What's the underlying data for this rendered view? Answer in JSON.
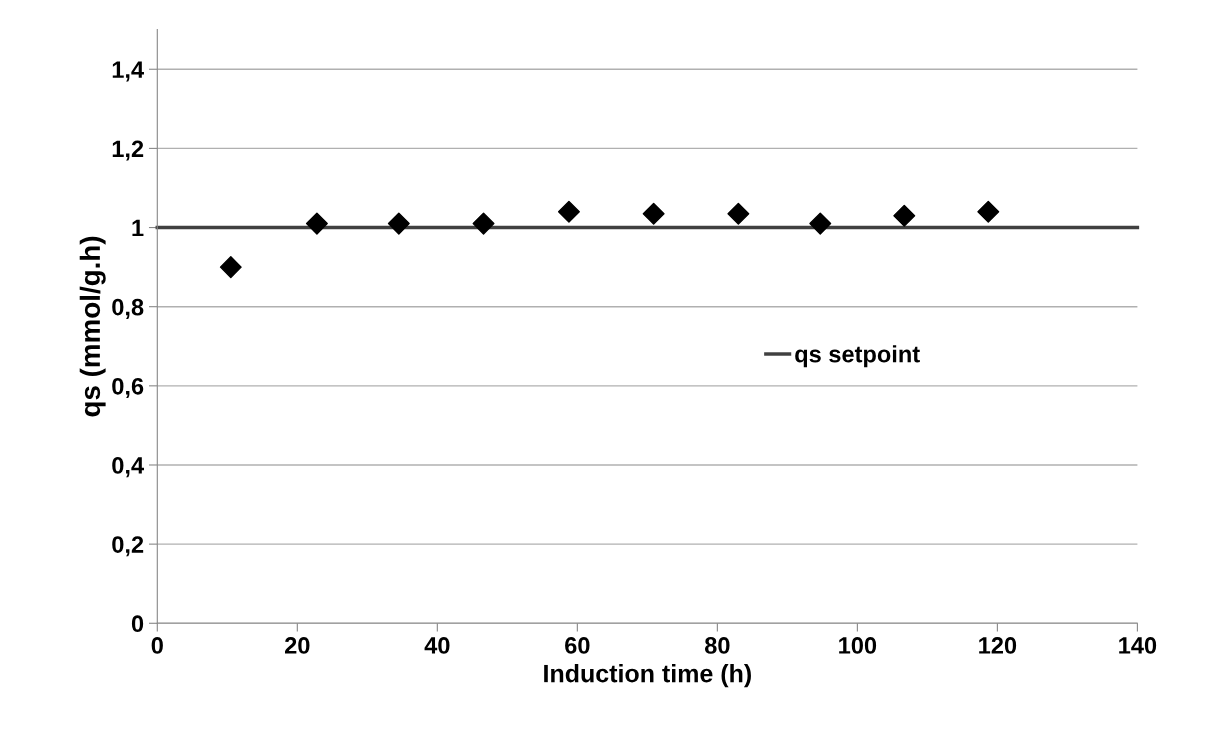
{
  "chart_data": {
    "type": "scatter",
    "xlabel": "Induction time (h)",
    "ylabel": "qs (mmol/g.h)",
    "series": [
      {
        "color": "#000000",
        "marker": "diamond",
        "x": [
          10.5,
          22.8,
          34.5,
          46.6,
          58.8,
          70.9,
          83.0,
          94.7,
          106.7,
          118.7
        ],
        "values": [
          0.9,
          1.01,
          1.01,
          1.01,
          1.04,
          1.035,
          1.035,
          1.01,
          1.03,
          1.04
        ]
      },
      {
        "type": "line",
        "name": "qs setpoint",
        "color": "#404040",
        "marker": "none",
        "x": [
          0,
          140
        ],
        "values": [
          1,
          1
        ]
      }
    ],
    "xlim": [
      0,
      140
    ],
    "xticks": [
      0,
      20,
      40,
      60,
      80,
      100,
      120,
      140
    ],
    "ylim": [
      0,
      1.5
    ],
    "yticks": [
      0,
      {
        "value": 0.2,
        "label": "0,2"
      },
      {
        "value": 0.4,
        "label": "0,4"
      },
      {
        "value": 0.6,
        "label": "0,6"
      },
      {
        "value": 0.8,
        "label": "0,8"
      },
      1,
      {
        "value": 1.2,
        "label": "1,2"
      },
      {
        "value": 1.4,
        "label": "1,4"
      }
    ],
    "grid": "y",
    "legend": "right"
  }
}
